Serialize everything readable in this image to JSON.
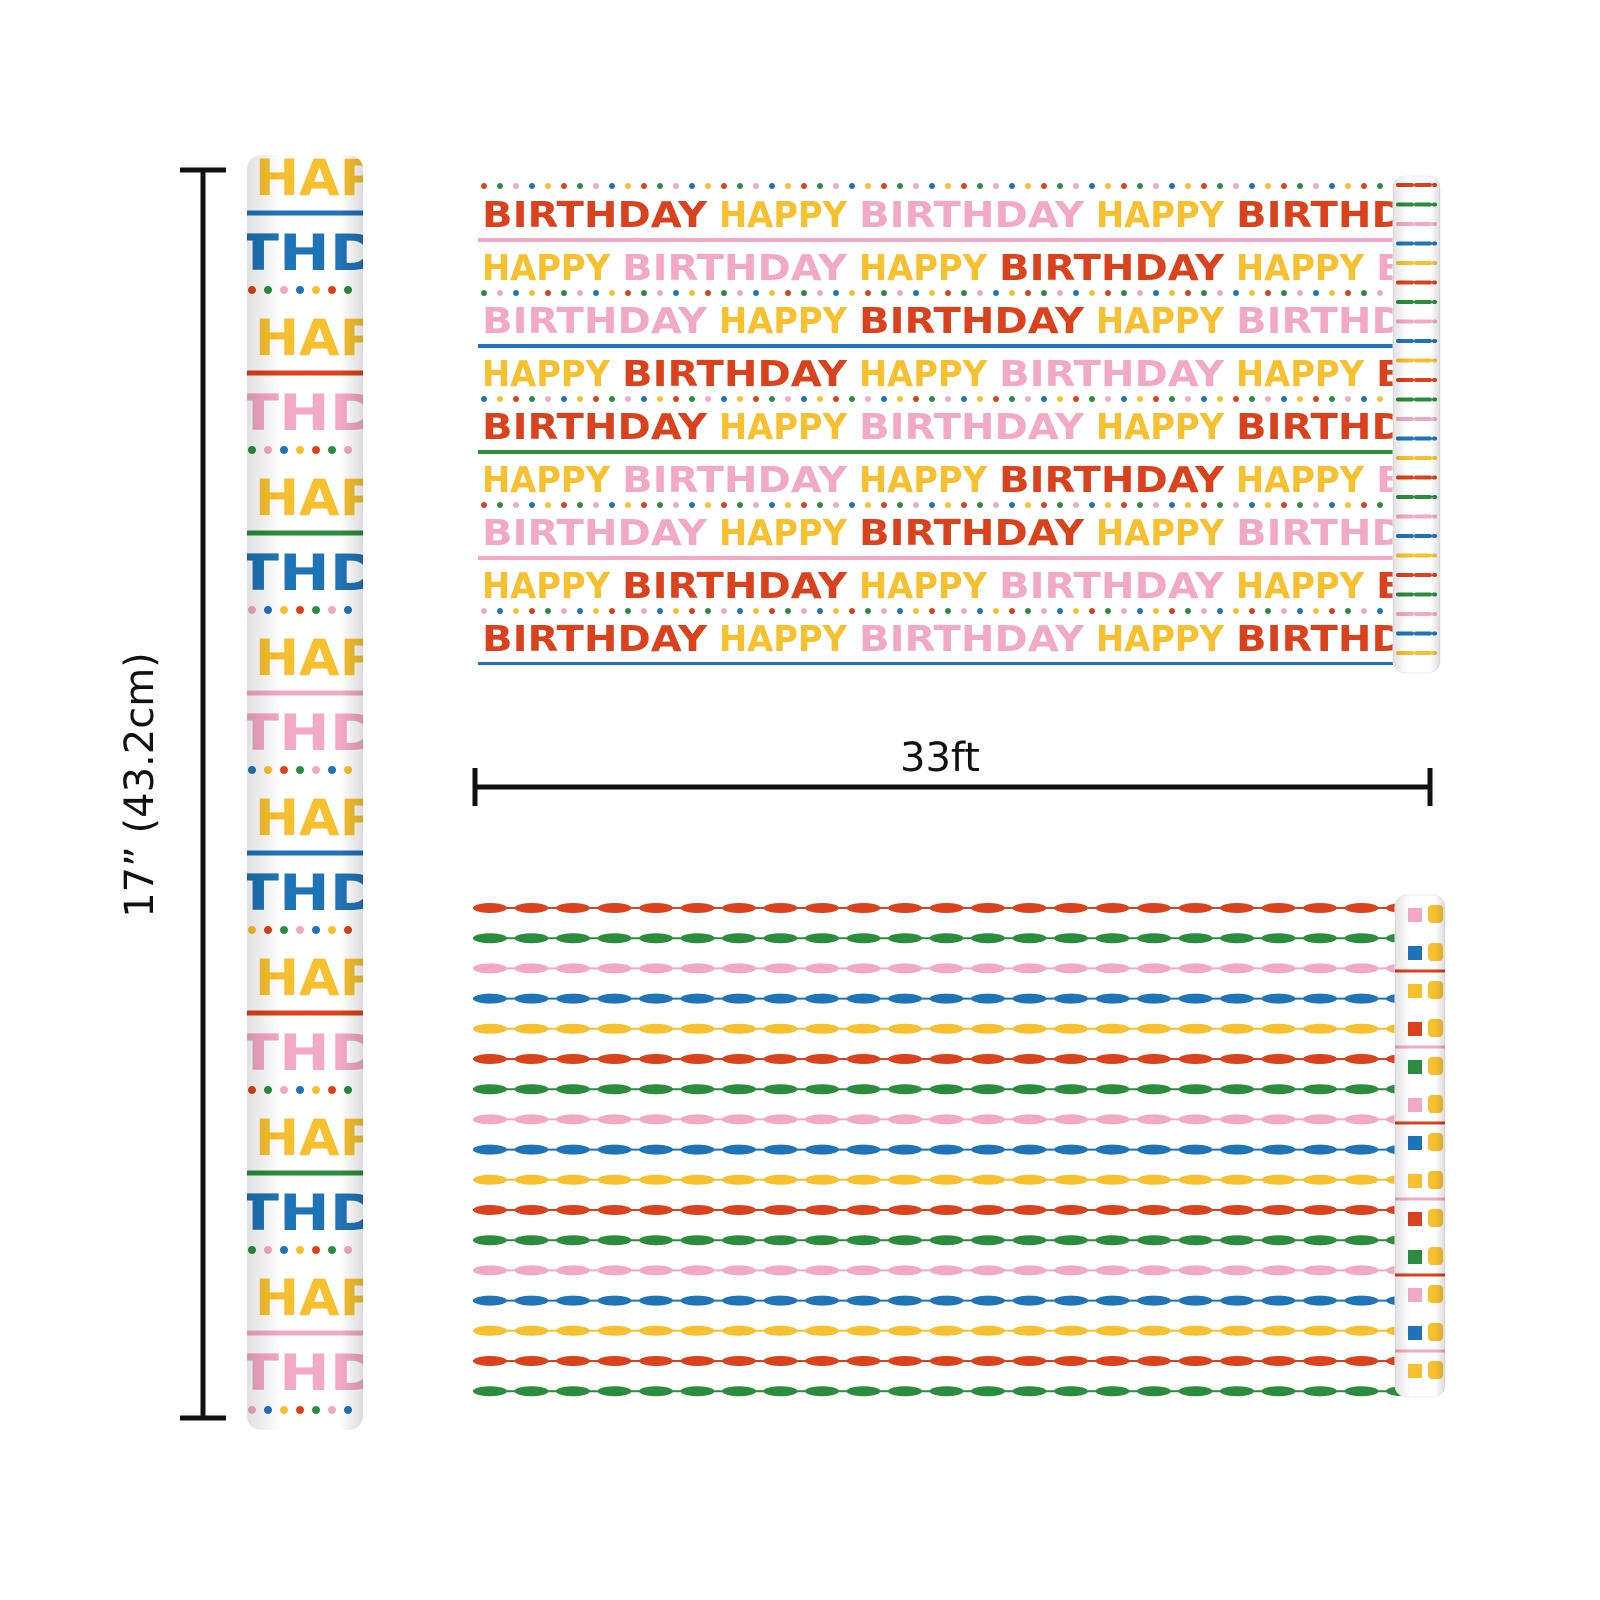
{
  "dimensions": {
    "height_label": "17” (43.2cm)",
    "width_label": "33ft"
  },
  "pattern": {
    "words": [
      "HAPPY",
      "BIRTHDAY"
    ]
  }
}
